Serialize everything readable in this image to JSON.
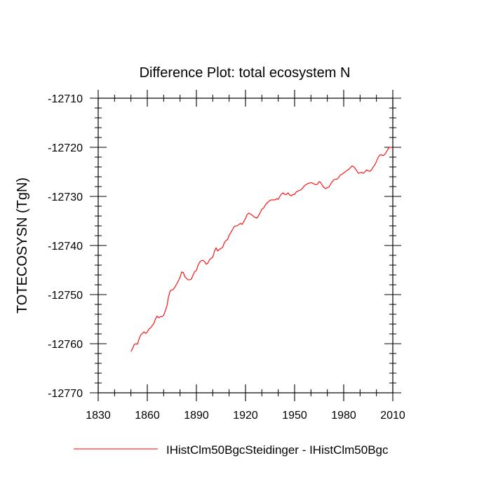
{
  "chart_data": {
    "type": "line",
    "title": "Difference Plot: total ecosystem N",
    "ylabel": "TOTECOSYSN  (TgN)",
    "xlabel": "",
    "xlim": [
      1830,
      2010
    ],
    "ylim": [
      -12770,
      -12710
    ],
    "x_ticks": [
      1830,
      1860,
      1890,
      1920,
      1950,
      1980,
      2010
    ],
    "x_tick_labels": [
      "1830",
      "1860",
      "1890",
      "1920",
      "1950",
      "1980",
      "2010"
    ],
    "y_ticks": [
      -12710,
      -12720,
      -12730,
      -12740,
      -12750,
      -12760,
      -12770
    ],
    "y_tick_labels": [
      "-12710",
      "-12720",
      "-12730",
      "-12740",
      "-12750",
      "-12760",
      "-12770"
    ],
    "legend_placement": "bottom",
    "grid": false,
    "series": [
      {
        "name": "IHistClm50BgcSteidinger - IHistClm50Bgc",
        "color": "#ff0000",
        "x": [
          1850,
          1851,
          1852,
          1853,
          1854,
          1855,
          1856,
          1857,
          1858,
          1859,
          1860,
          1861,
          1862,
          1863,
          1864,
          1865,
          1866,
          1867,
          1868,
          1869,
          1870,
          1871,
          1872,
          1873,
          1874,
          1875,
          1876,
          1877,
          1878,
          1879,
          1880,
          1881,
          1882,
          1883,
          1884,
          1885,
          1886,
          1887,
          1888,
          1889,
          1890,
          1891,
          1892,
          1893,
          1894,
          1895,
          1896,
          1897,
          1898,
          1899,
          1900,
          1901,
          1902,
          1903,
          1904,
          1905,
          1906,
          1907,
          1908,
          1909,
          1910,
          1911,
          1912,
          1913,
          1914,
          1915,
          1916,
          1917,
          1918,
          1919,
          1920,
          1921,
          1922,
          1923,
          1924,
          1925,
          1926,
          1927,
          1928,
          1929,
          1930,
          1931,
          1932,
          1933,
          1934,
          1935,
          1936,
          1937,
          1938,
          1939,
          1940,
          1941,
          1942,
          1943,
          1944,
          1945,
          1946,
          1947,
          1948,
          1949,
          1950,
          1951,
          1952,
          1953,
          1954,
          1955,
          1956,
          1957,
          1958,
          1959,
          1960,
          1961,
          1962,
          1963,
          1964,
          1965,
          1966,
          1967,
          1968,
          1969,
          1970,
          1971,
          1972,
          1973,
          1974,
          1975,
          1976,
          1977,
          1978,
          1979,
          1980,
          1981,
          1982,
          1983,
          1984,
          1985,
          1986,
          1987,
          1988,
          1989,
          1990,
          1991,
          1992,
          1993,
          1994,
          1995,
          1996,
          1997,
          1998,
          1999,
          2000,
          2001,
          2002,
          2003,
          2004,
          2005,
          2006,
          2007,
          2008,
          2009,
          2010
        ],
        "values": [
          -12761.6,
          -12761.0,
          -12760.2,
          -12760.0,
          -12760.1,
          -12759.0,
          -12758.2,
          -12757.9,
          -12757.6,
          -12757.9,
          -12757.6,
          -12757.0,
          -12756.8,
          -12756.3,
          -12755.9,
          -12754.9,
          -12754.4,
          -12754.7,
          -12754.5,
          -12754.5,
          -12754.2,
          -12753.3,
          -12752.3,
          -12750.4,
          -12749.2,
          -12749.1,
          -12748.9,
          -12748.4,
          -12747.8,
          -12747.2,
          -12746.5,
          -12745.4,
          -12745.5,
          -12746.4,
          -12746.7,
          -12747.0,
          -12747.0,
          -12746.8,
          -12746.0,
          -12745.3,
          -12745.1,
          -12744.0,
          -12743.4,
          -12743.1,
          -12743.0,
          -12743.3,
          -12743.8,
          -12743.6,
          -12742.9,
          -12742.6,
          -12742.4,
          -12741.2,
          -12740.5,
          -12741.1,
          -12740.8,
          -12740.6,
          -12740.4,
          -12739.5,
          -12739.0,
          -12738.8,
          -12737.9,
          -12737.4,
          -12736.8,
          -12736.2,
          -12736.0,
          -12736.0,
          -12735.7,
          -12735.5,
          -12735.7,
          -12735.1,
          -12734.5,
          -12733.7,
          -12733.4,
          -12733.6,
          -12733.8,
          -12734.1,
          -12734.3,
          -12734.4,
          -12733.9,
          -12733.3,
          -12732.6,
          -12732.4,
          -12731.8,
          -12731.4,
          -12731.1,
          -12730.8,
          -12730.7,
          -12730.7,
          -12730.7,
          -12730.5,
          -12730.6,
          -12730.0,
          -12729.5,
          -12729.3,
          -12729.6,
          -12729.6,
          -12729.3,
          -12729.7,
          -12729.9,
          -12729.6,
          -12729.6,
          -12729.1,
          -12728.9,
          -12728.8,
          -12728.6,
          -12728.3,
          -12727.8,
          -12727.6,
          -12727.4,
          -12727.3,
          -12727.2,
          -12727.3,
          -12727.5,
          -12727.6,
          -12727.5,
          -12727.0,
          -12727.2,
          -12727.8,
          -12728.2,
          -12728.4,
          -12728.2,
          -12728.1,
          -12727.5,
          -12727.0,
          -12726.6,
          -12726.5,
          -12726.5,
          -12726.1,
          -12725.6,
          -12725.5,
          -12725.2,
          -12725.0,
          -12724.7,
          -12724.5,
          -12724.2,
          -12723.8,
          -12723.9,
          -12724.3,
          -12724.8,
          -12725.3,
          -12725.2,
          -12725.1,
          -12725.3,
          -12725.0,
          -12724.6,
          -12724.8,
          -12724.9,
          -12724.6,
          -12724.0,
          -12723.6,
          -12722.9,
          -12722.1,
          -12721.6,
          -12721.5,
          -12721.7,
          -12721.5,
          -12721.0,
          -12720.4,
          -12720.0,
          -12720.0,
          -12720.1
        ]
      }
    ]
  }
}
